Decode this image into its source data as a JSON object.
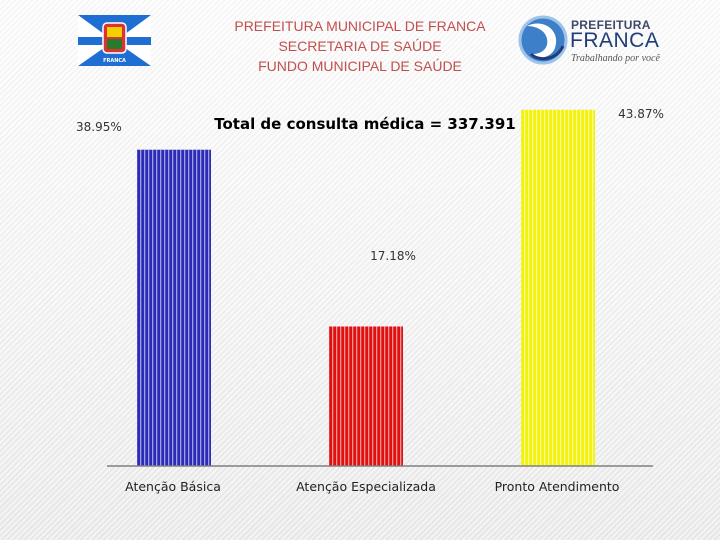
{
  "header": {
    "lines": [
      "PREFEITURA MUNICIPAL DE FRANCA",
      "SECRETARIA DE SAÚDE",
      "FUNDO MUNICIPAL DE SAÚDE"
    ],
    "logo_left_text": "FRANCA",
    "logo_right": {
      "line1": "PREFEITURA",
      "line2": "FRANCA",
      "tagline": "Trabalhando por você"
    }
  },
  "colors": {
    "header_text": "#c0504d",
    "bar_blue": "#2b2bb8",
    "bar_red": "#e01010",
    "bar_yellow": "#f2f20c"
  },
  "chart_data": {
    "type": "bar",
    "title": "Total de consulta médica = 337.391",
    "categories": [
      "Atenção Básica",
      "Atenção Especializada",
      "Pronto Atendimento"
    ],
    "values": [
      38.95,
      17.18,
      43.87
    ],
    "value_labels": [
      "38.95%",
      "17.18%",
      "43.87%"
    ],
    "bar_colors": [
      "#2b2bb8",
      "#e01010",
      "#f2f20c"
    ],
    "ylim": [
      0,
      50
    ],
    "grid": false,
    "legend": "none"
  }
}
